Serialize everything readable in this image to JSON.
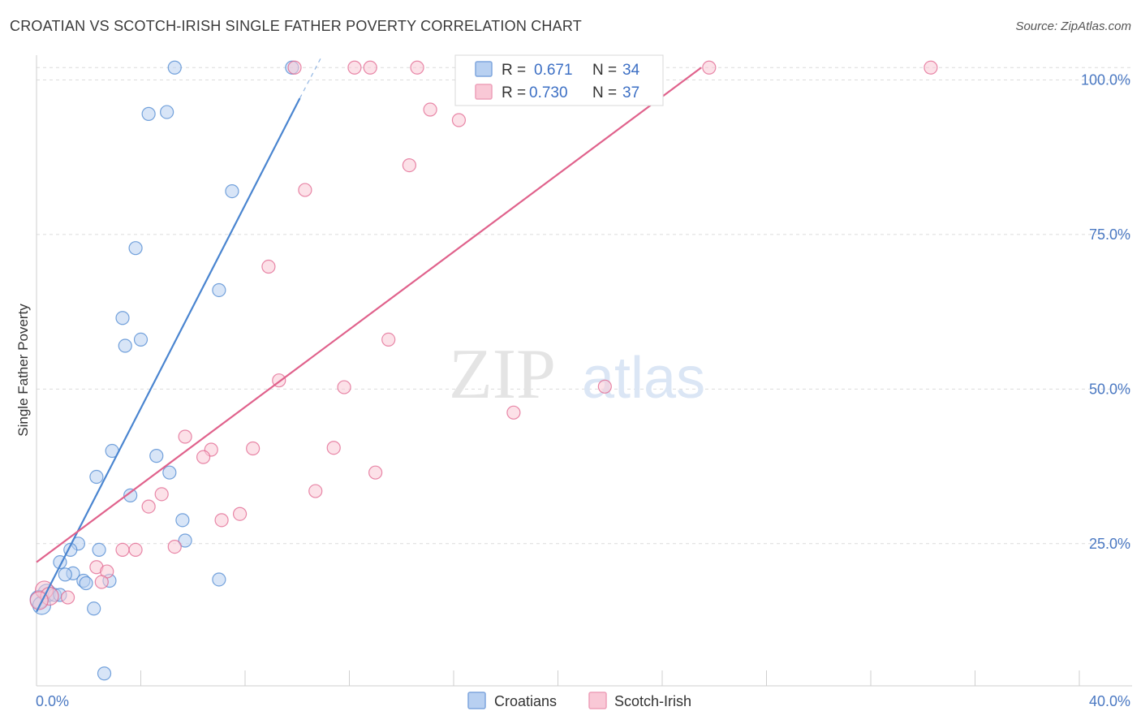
{
  "title": "CROATIAN VS SCOTCH-IRISH SINGLE FATHER POVERTY CORRELATION CHART",
  "source": "Source: ZipAtlas.com",
  "watermark": {
    "zip": "ZIP",
    "atlas": "atlas"
  },
  "legend": {
    "rows": [
      {
        "r_label": "R =",
        "r_value": "0.671",
        "n_label": "N =",
        "n_value": "34",
        "color": "#a9c6ee"
      },
      {
        "r_label": "R =",
        "r_value": "0.730",
        "n_label": "N =",
        "n_value": "37",
        "color": "#f5b9cb"
      }
    ]
  },
  "bottom_legend": [
    "Croatians",
    "Scotch-Irish"
  ],
  "chart_data": {
    "type": "scatter",
    "title": "CROATIAN VS SCOTCH-IRISH SINGLE FATHER POVERTY CORRELATION CHART",
    "xlabel": "",
    "ylabel": "Single Father Poverty",
    "xlim": [
      0,
      40
    ],
    "ylim": [
      2,
      104
    ],
    "x_tick_labels": [
      "0.0%",
      "40.0%"
    ],
    "y_tick_labels": [
      "25.0%",
      "50.0%",
      "75.0%",
      "100.0%"
    ],
    "y_ticks": [
      25,
      50,
      75,
      100
    ],
    "grid": "horizontal dashed",
    "legend_position": "top-center",
    "series": [
      {
        "name": "Croatians",
        "color": "#4a85d0",
        "fill": "#b8d0f1",
        "r": 0.671,
        "n": 34,
        "trend": {
          "x": [
            0.0,
            10.4
          ],
          "y": [
            14.0,
            99.5
          ]
        },
        "points": [
          [
            5.3,
            102.0
          ],
          [
            9.8,
            102.0
          ],
          [
            4.3,
            94.5
          ],
          [
            5.0,
            94.8
          ],
          [
            7.5,
            82.0
          ],
          [
            3.8,
            72.8
          ],
          [
            7.0,
            66.0
          ],
          [
            3.3,
            61.5
          ],
          [
            3.4,
            57.0
          ],
          [
            4.0,
            58.0
          ],
          [
            2.9,
            40.0
          ],
          [
            4.6,
            39.2
          ],
          [
            2.3,
            35.8
          ],
          [
            5.1,
            36.5
          ],
          [
            3.6,
            32.8
          ],
          [
            5.6,
            28.8
          ],
          [
            5.7,
            25.5
          ],
          [
            1.6,
            25.0
          ],
          [
            2.4,
            24.0
          ],
          [
            1.3,
            24.0
          ],
          [
            0.9,
            22.0
          ],
          [
            1.4,
            20.2
          ],
          [
            1.1,
            20.0
          ],
          [
            1.8,
            19.0
          ],
          [
            2.8,
            19.0
          ],
          [
            1.9,
            18.6
          ],
          [
            7.0,
            19.2
          ],
          [
            0.4,
            17.0
          ],
          [
            0.7,
            16.7
          ],
          [
            0.9,
            16.7
          ],
          [
            0.1,
            16.0
          ],
          [
            0.2,
            15.0
          ],
          [
            2.2,
            14.5
          ],
          [
            2.6,
            4.0
          ]
        ]
      },
      {
        "name": "Scotch-Irish",
        "color": "#e0628c",
        "fill": "#f9c8d6",
        "r": 0.73,
        "n": 37,
        "trend": {
          "x": [
            0.0,
            25.5
          ],
          "y": [
            22.0,
            102.0
          ]
        },
        "points": [
          [
            9.9,
            102.0
          ],
          [
            12.2,
            102.0
          ],
          [
            12.8,
            102.0
          ],
          [
            14.6,
            102.0
          ],
          [
            25.8,
            102.0
          ],
          [
            34.3,
            102.0
          ],
          [
            15.1,
            95.2
          ],
          [
            16.2,
            93.5
          ],
          [
            14.3,
            86.2
          ],
          [
            10.3,
            82.2
          ],
          [
            8.9,
            69.8
          ],
          [
            13.5,
            58.0
          ],
          [
            9.3,
            51.4
          ],
          [
            11.8,
            50.3
          ],
          [
            21.8,
            50.4
          ],
          [
            18.3,
            46.2
          ],
          [
            5.7,
            42.3
          ],
          [
            6.7,
            40.2
          ],
          [
            8.3,
            40.4
          ],
          [
            11.4,
            40.5
          ],
          [
            6.4,
            39.0
          ],
          [
            13.0,
            36.5
          ],
          [
            10.7,
            33.5
          ],
          [
            4.8,
            33.0
          ],
          [
            4.3,
            31.0
          ],
          [
            7.8,
            29.8
          ],
          [
            7.1,
            28.8
          ],
          [
            5.3,
            24.5
          ],
          [
            3.3,
            24.0
          ],
          [
            3.8,
            24.0
          ],
          [
            2.3,
            21.2
          ],
          [
            2.7,
            20.5
          ],
          [
            2.5,
            18.8
          ],
          [
            0.3,
            17.5
          ],
          [
            0.5,
            16.5
          ],
          [
            1.2,
            16.3
          ],
          [
            0.1,
            15.8
          ]
        ]
      }
    ]
  }
}
